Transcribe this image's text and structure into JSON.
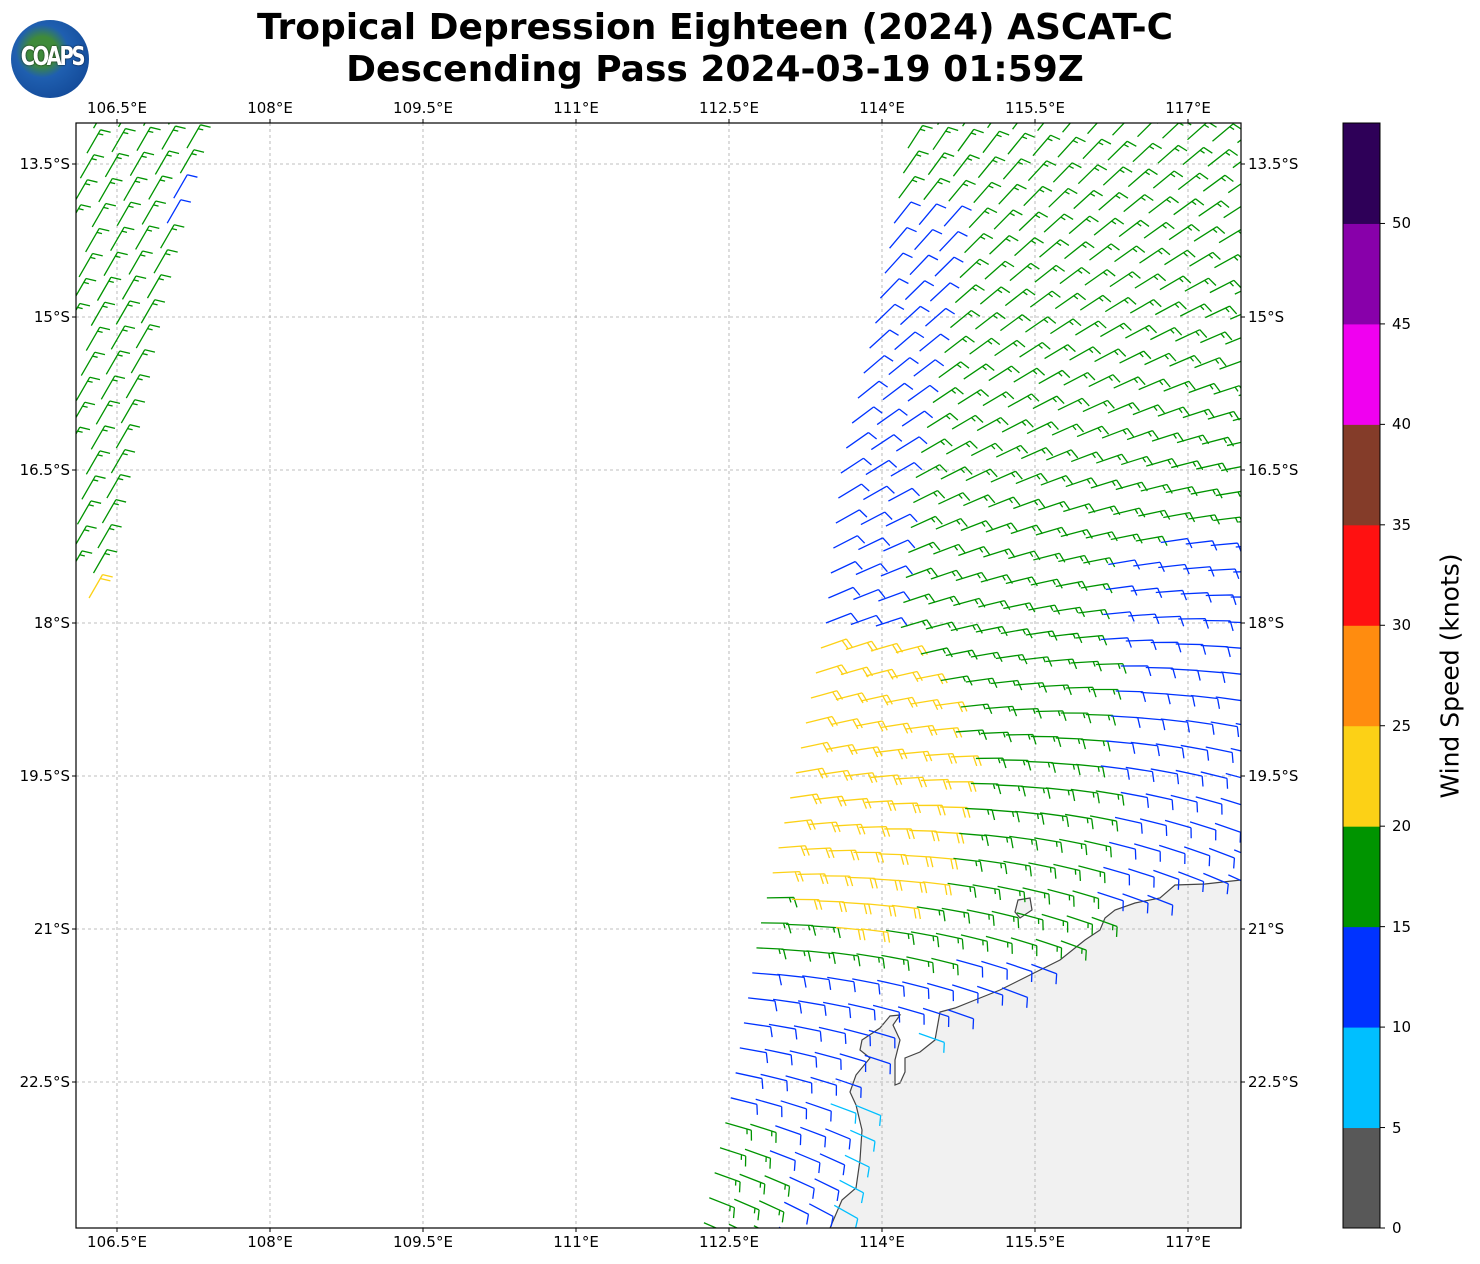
{
  "header": {
    "title_line1": "Tropical Depression Eighteen (2024) ASCAT-C",
    "title_line2": "Descending Pass 2024-03-19 01:59Z",
    "logo_text": "COAPS"
  },
  "chart_data": {
    "type": "wind-barb-map",
    "lon_range": [
      106.1,
      117.43
    ],
    "lat_range_south": [
      13.1,
      23.9
    ],
    "lon_ticks": [
      106.5,
      108,
      109.5,
      111,
      112.5,
      114,
      115.5,
      117
    ],
    "lon_tick_labels": [
      "106.5°E",
      "108°E",
      "109.5°E",
      "111°E",
      "112.5°E",
      "114°E",
      "115.5°E",
      "117°E"
    ],
    "lat_ticks": [
      13.5,
      15,
      16.5,
      18,
      19.5,
      21,
      22.5
    ],
    "lat_tick_labels": [
      "13.5°S",
      "15°S",
      "16.5°S",
      "18°S",
      "19.5°S",
      "21°S",
      "22.5°S"
    ],
    "grid": true,
    "swaths": {
      "east_swath_west_edge_lon_by_lat": [
        [
          13.1,
          114.3
        ],
        [
          15,
          113.95
        ],
        [
          16.5,
          113.6
        ],
        [
          18,
          113.45
        ],
        [
          19.5,
          113.15
        ],
        [
          21,
          112.8
        ],
        [
          22.5,
          112.55
        ],
        [
          23.9,
          112.25
        ]
      ],
      "west_swath_east_edge_lon_by_lat": [
        [
          13.1,
          107.25
        ],
        [
          15,
          106.75
        ],
        [
          16.5,
          106.45
        ],
        [
          17.9,
          106.2
        ]
      ],
      "spacing_deg": 0.245
    },
    "wind_regions_knots": {
      "strong_core": "20-25 (yellow) near 113.6°E 19.6°S",
      "general": "15-20 (green)",
      "outer": "10-15 (blue)",
      "near_coast": "5-10 (cyan)"
    },
    "colorbar": {
      "label": "Wind Speed (knots)",
      "ticks": [
        0,
        5,
        10,
        15,
        20,
        25,
        30,
        35,
        40,
        45,
        50
      ],
      "tick_labels": [
        "0",
        "5",
        "10",
        "15",
        "20",
        "25",
        "30",
        "35",
        "40",
        "45",
        "50"
      ],
      "range": [
        0,
        55
      ],
      "bands": [
        {
          "from": 0,
          "to": 5,
          "color": "#585858"
        },
        {
          "from": 5,
          "to": 10,
          "color": "#00bfff"
        },
        {
          "from": 10,
          "to": 15,
          "color": "#0033ff"
        },
        {
          "from": 15,
          "to": 20,
          "color": "#009400"
        },
        {
          "from": 20,
          "to": 25,
          "color": "#fcd116"
        },
        {
          "from": 25,
          "to": 30,
          "color": "#ff8c0f"
        },
        {
          "from": 30,
          "to": 35,
          "color": "#ff1111"
        },
        {
          "from": 35,
          "to": 40,
          "color": "#843c29"
        },
        {
          "from": 40,
          "to": 45,
          "color": "#f000f0"
        },
        {
          "from": 45,
          "to": 50,
          "color": "#8800aa"
        },
        {
          "from": 50,
          "to": 55,
          "color": "#2e0058"
        }
      ]
    }
  }
}
